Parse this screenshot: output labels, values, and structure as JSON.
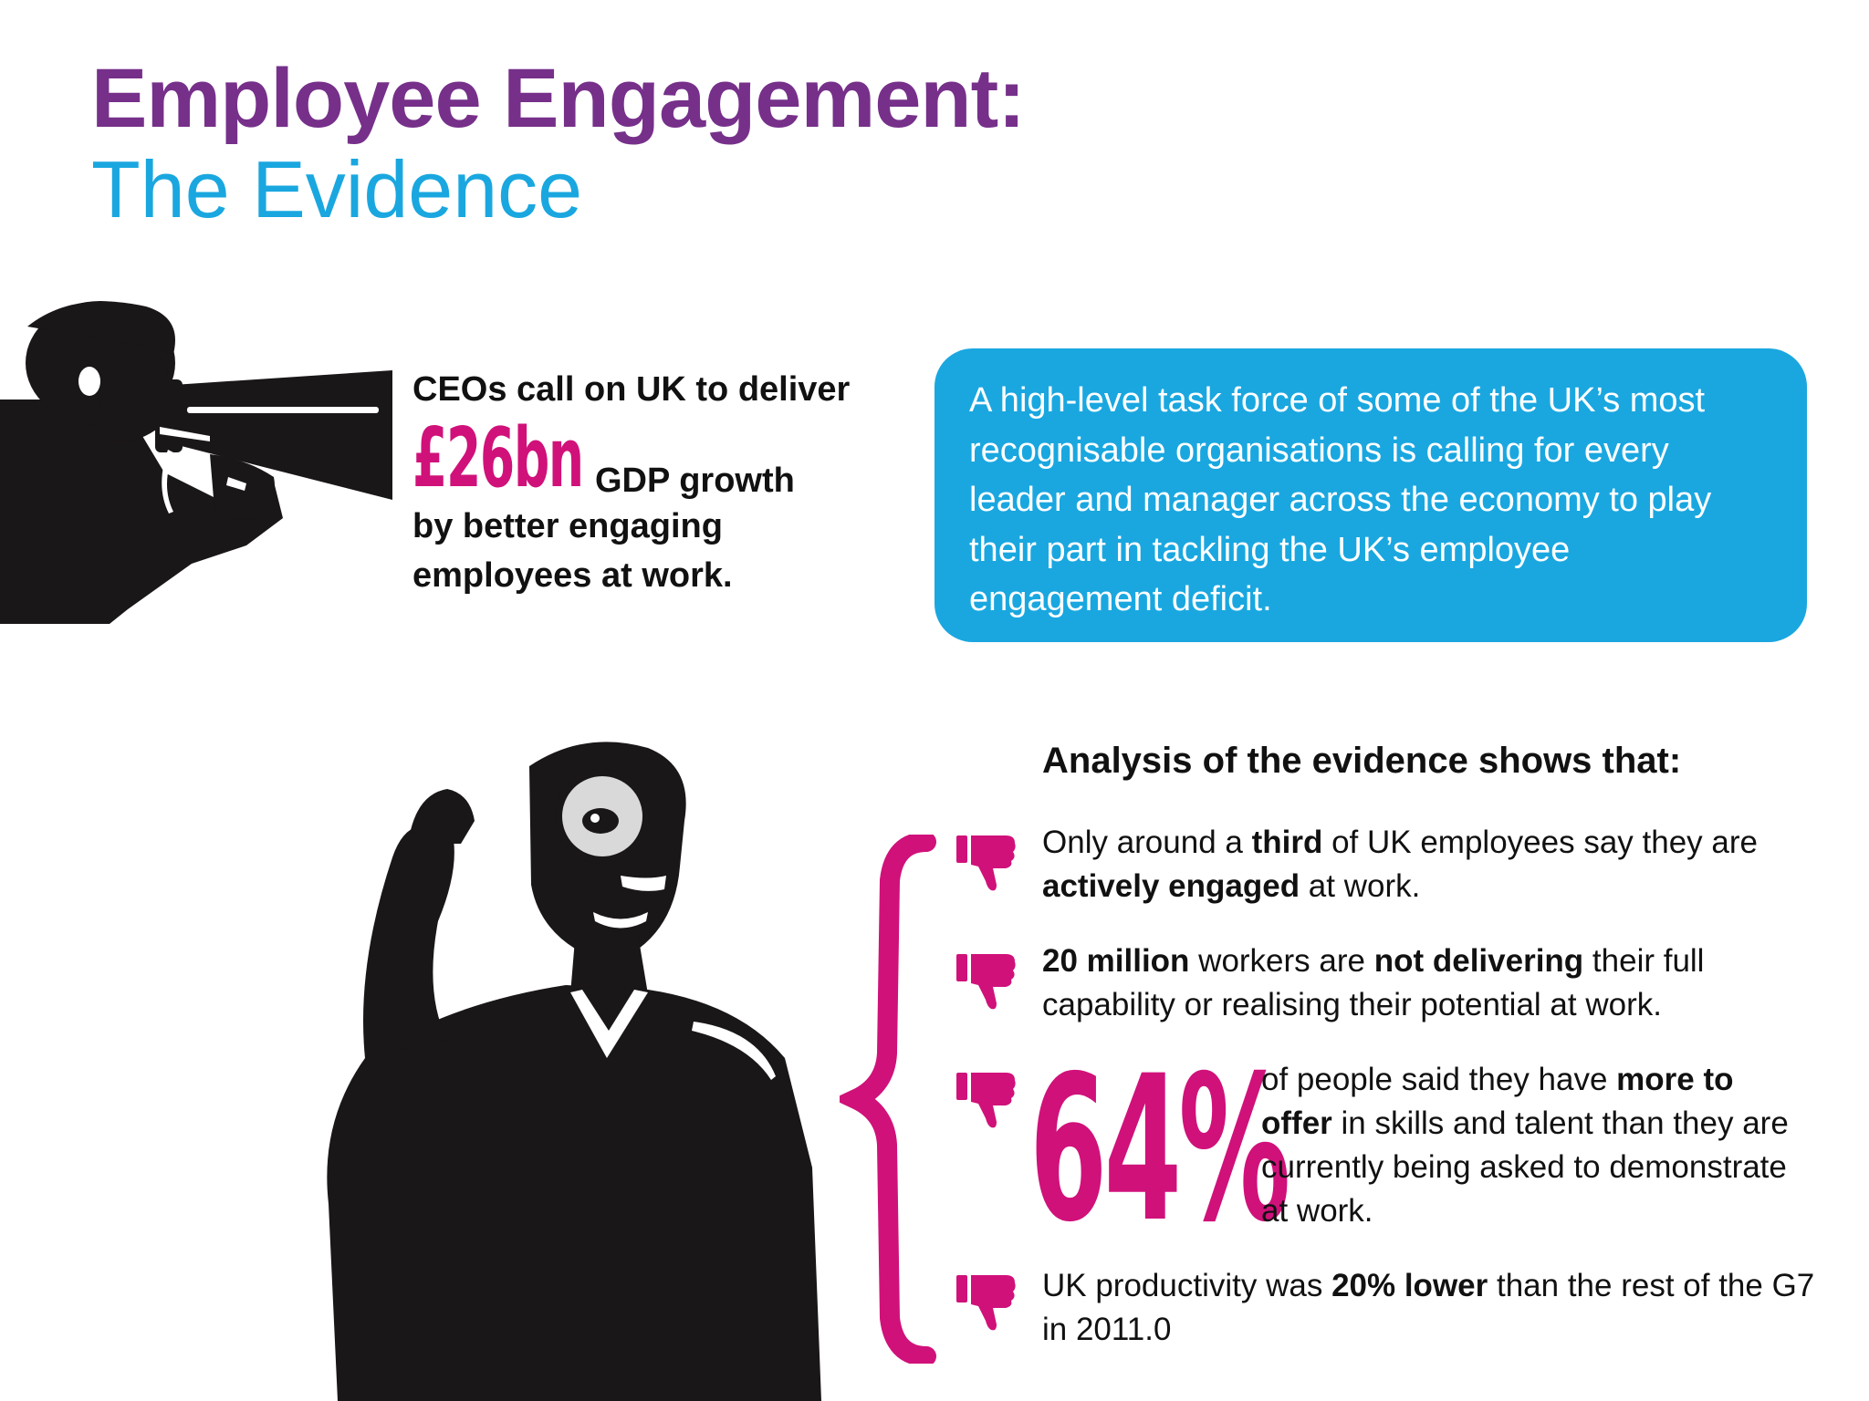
{
  "title": {
    "line1": "Employee Engagement:",
    "line2": "The Evidence"
  },
  "claim": {
    "line1": "CEOs call on UK to deliver",
    "amount": "£26bn",
    "line2": "GDP growth",
    "line3": "by better engaging",
    "line4": "employees at work."
  },
  "quote": {
    "text": "A high-level task force of some of the UK’s most recognisable organisations is calling for every leader and manager across the economy to play their part in tackling the UK’s employee engagement deficit."
  },
  "analysis": {
    "heading": "Analysis of the evidence shows that:",
    "point1": {
      "t1": "Only around a ",
      "b1": "third",
      "t2": " of UK employees say they are ",
      "b2": "actively engaged",
      "t3": " at work."
    },
    "point2": {
      "b1": "20 million",
      "t1": " workers are ",
      "b2": "not delivering",
      "t2": " their full capability or realising their potential at work."
    },
    "point3": {
      "percent": "64%",
      "t1": "of people said they have ",
      "b1": "more to offer",
      "t2": " in skills and talent than they are currently being asked to demonstrate at work."
    },
    "point4": {
      "t1": "UK productivity was ",
      "b1": "20% lower",
      "t2": " than the rest of the G7 in 2011.0"
    }
  },
  "colors": {
    "title_purple": "#76308a",
    "title_blue": "#1aa7e0",
    "accent_magenta": "#d0117a",
    "silhouette": "#1a1718"
  },
  "icons": [
    "megaphone-man-illustration",
    "magnifier-man-illustration",
    "thumbs-down-icon",
    "curly-brace"
  ]
}
